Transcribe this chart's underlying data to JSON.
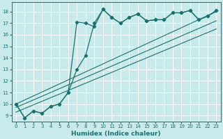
{
  "xlabel": "Humidex (Indice chaleur)",
  "bg_color": "#c8eaea",
  "grid_color": "#b8d8d8",
  "line_color": "#1a7070",
  "xlim": [
    -0.5,
    23.5
  ],
  "ylim": [
    8.5,
    18.8
  ],
  "xticks": [
    0,
    1,
    2,
    3,
    4,
    5,
    6,
    7,
    8,
    9,
    10,
    11,
    12,
    13,
    14,
    15,
    16,
    17,
    18,
    19,
    20,
    21,
    22,
    23
  ],
  "yticks": [
    9,
    10,
    11,
    12,
    13,
    14,
    15,
    16,
    17,
    18
  ],
  "series1_x": [
    0,
    1,
    2,
    3,
    4,
    5,
    6,
    7,
    8,
    9,
    10,
    11,
    12,
    13,
    14,
    15,
    16,
    17,
    18,
    19,
    20,
    21,
    22,
    23
  ],
  "series1_y": [
    10.0,
    8.8,
    9.4,
    9.2,
    9.8,
    10.0,
    11.0,
    17.1,
    17.0,
    16.7,
    18.2,
    17.5,
    17.0,
    17.5,
    17.8,
    17.2,
    17.3,
    17.3,
    17.9,
    17.9,
    18.1,
    17.3,
    17.6,
    18.1
  ],
  "series2_x": [
    0,
    1,
    2,
    3,
    4,
    5,
    6,
    7,
    8,
    9,
    10,
    11,
    12,
    13,
    14,
    15,
    16,
    17,
    18,
    19,
    20,
    21,
    22,
    23
  ],
  "series2_y": [
    10.0,
    8.8,
    9.4,
    9.2,
    9.8,
    10.0,
    11.0,
    13.0,
    14.2,
    17.0,
    18.2,
    17.5,
    17.0,
    17.5,
    17.8,
    17.2,
    17.3,
    17.3,
    17.9,
    17.9,
    18.1,
    17.3,
    17.6,
    18.1
  ],
  "line1_x": [
    0,
    23
  ],
  "line1_y": [
    9.7,
    17.2
  ],
  "line2_x": [
    0,
    23
  ],
  "line2_y": [
    10.0,
    18.0
  ],
  "line3_x": [
    0,
    23
  ],
  "line3_y": [
    9.3,
    16.5
  ],
  "xlabel_fontsize": 6.5,
  "tick_fontsize": 5.0
}
